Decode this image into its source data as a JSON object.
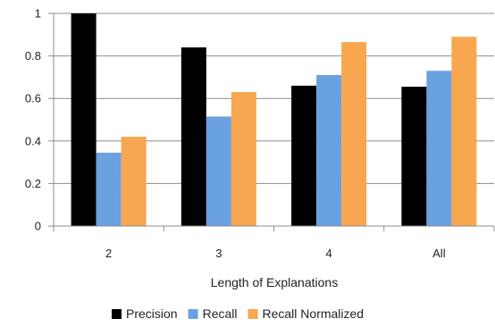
{
  "chart_data": {
    "type": "bar",
    "categories": [
      "2",
      "3",
      "4",
      "All"
    ],
    "series": [
      {
        "name": "Precision",
        "color": "#000000",
        "values": [
          1.0,
          0.84,
          0.66,
          0.655
        ]
      },
      {
        "name": "Recall",
        "color": "#6aa1e0",
        "values": [
          0.345,
          0.515,
          0.71,
          0.73
        ]
      },
      {
        "name": "Recall Normalized",
        "color": "#f8a64f",
        "values": [
          0.42,
          0.63,
          0.865,
          0.89
        ]
      }
    ],
    "xlabel": "Length of Explanations",
    "ylabel": "",
    "title": "",
    "ylim": [
      0,
      1
    ],
    "yticks": [
      0,
      0.2,
      0.4,
      0.6,
      0.8,
      1
    ],
    "ytick_labels": [
      "0",
      "0.2",
      "0.4",
      "0.6",
      "0.8",
      "1"
    ],
    "grid": true,
    "legend_position": "bottom"
  }
}
